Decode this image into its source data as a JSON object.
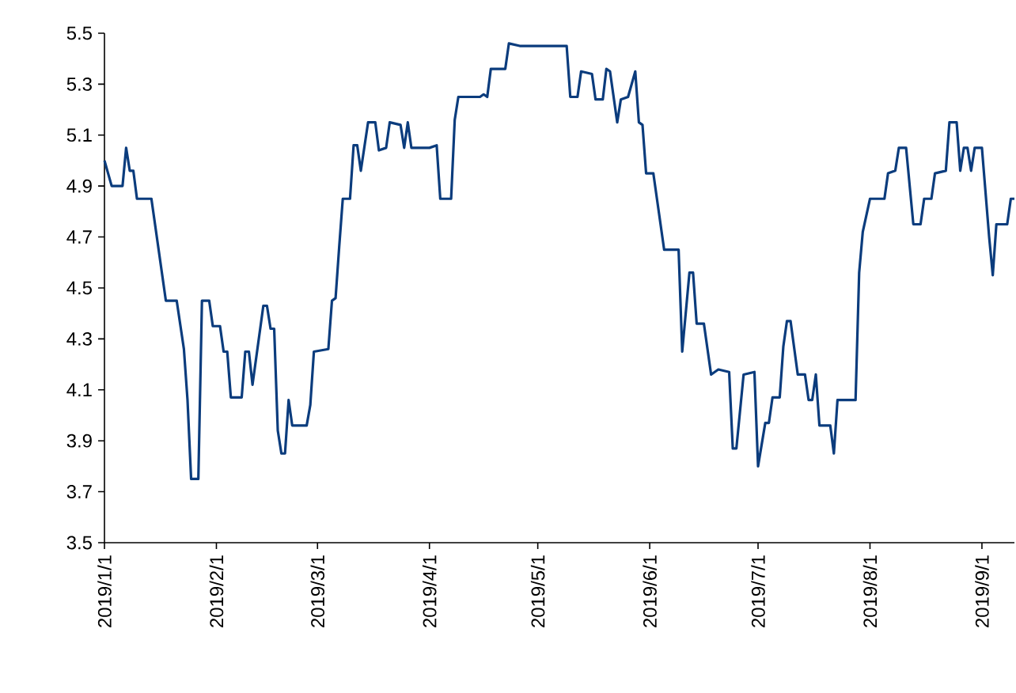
{
  "chart_data": {
    "type": "line",
    "x": [
      "2019-01-01",
      "2019-01-03",
      "2019-01-06",
      "2019-01-07",
      "2019-01-08",
      "2019-01-09",
      "2019-01-10",
      "2019-01-14",
      "2019-01-18",
      "2019-01-21",
      "2019-01-23",
      "2019-01-24",
      "2019-01-25",
      "2019-01-27",
      "2019-01-28",
      "2019-01-30",
      "2019-01-31",
      "2019-02-02",
      "2019-02-03",
      "2019-02-04",
      "2019-02-05",
      "2019-02-08",
      "2019-02-09",
      "2019-02-10",
      "2019-02-11",
      "2019-02-14",
      "2019-02-15",
      "2019-02-16",
      "2019-02-17",
      "2019-02-18",
      "2019-02-19",
      "2019-02-20",
      "2019-02-21",
      "2019-02-22",
      "2019-02-26",
      "2019-02-27",
      "2019-02-28",
      "2019-03-04",
      "2019-03-05",
      "2019-03-06",
      "2019-03-07",
      "2019-03-08",
      "2019-03-10",
      "2019-03-11",
      "2019-03-12",
      "2019-03-13",
      "2019-03-15",
      "2019-03-17",
      "2019-03-18",
      "2019-03-20",
      "2019-03-21",
      "2019-03-24",
      "2019-03-25",
      "2019-03-26",
      "2019-03-27",
      "2019-04-01",
      "2019-04-03",
      "2019-04-04",
      "2019-04-07",
      "2019-04-08",
      "2019-04-09",
      "2019-04-15",
      "2019-04-16",
      "2019-04-17",
      "2019-04-18",
      "2019-04-22",
      "2019-04-23",
      "2019-04-26",
      "2019-05-09",
      "2019-05-10",
      "2019-05-12",
      "2019-05-13",
      "2019-05-16",
      "2019-05-17",
      "2019-05-19",
      "2019-05-20",
      "2019-05-21",
      "2019-05-23",
      "2019-05-24",
      "2019-05-26",
      "2019-05-28",
      "2019-05-29",
      "2019-05-30",
      "2019-05-31",
      "2019-06-02",
      "2019-06-05",
      "2019-06-09",
      "2019-06-10",
      "2019-06-12",
      "2019-06-13",
      "2019-06-14",
      "2019-06-16",
      "2019-06-18",
      "2019-06-20",
      "2019-06-23",
      "2019-06-24",
      "2019-06-25",
      "2019-06-27",
      "2019-06-30",
      "2019-07-01",
      "2019-07-03",
      "2019-07-04",
      "2019-07-05",
      "2019-07-07",
      "2019-07-08",
      "2019-07-09",
      "2019-07-10",
      "2019-07-12",
      "2019-07-14",
      "2019-07-15",
      "2019-07-16",
      "2019-07-17",
      "2019-07-18",
      "2019-07-21",
      "2019-07-22",
      "2019-07-23",
      "2019-07-25",
      "2019-07-28",
      "2019-07-29",
      "2019-07-30",
      "2019-08-01",
      "2019-08-05",
      "2019-08-06",
      "2019-08-08",
      "2019-08-09",
      "2019-08-11",
      "2019-08-13",
      "2019-08-15",
      "2019-08-16",
      "2019-08-18",
      "2019-08-19",
      "2019-08-22",
      "2019-08-23",
      "2019-08-25",
      "2019-08-26",
      "2019-08-27",
      "2019-08-28",
      "2019-08-29",
      "2019-08-30",
      "2019-09-01",
      "2019-09-03",
      "2019-09-04",
      "2019-09-05",
      "2019-09-08",
      "2019-09-09",
      "2019-09-10"
    ],
    "series": [
      {
        "color": "#0b3c7d",
        "values": [
          5.0,
          4.9,
          4.9,
          5.05,
          4.96,
          4.96,
          4.85,
          4.85,
          4.45,
          4.45,
          4.26,
          4.06,
          3.75,
          3.75,
          4.45,
          4.45,
          4.35,
          4.35,
          4.25,
          4.25,
          4.07,
          4.07,
          4.25,
          4.25,
          4.12,
          4.43,
          4.43,
          4.34,
          4.34,
          3.94,
          3.85,
          3.85,
          4.06,
          3.96,
          3.96,
          4.04,
          4.25,
          4.26,
          4.45,
          4.46,
          4.66,
          4.85,
          4.85,
          5.06,
          5.06,
          4.96,
          5.15,
          5.15,
          5.04,
          5.05,
          5.15,
          5.14,
          5.05,
          5.15,
          5.05,
          5.05,
          5.06,
          4.85,
          4.85,
          5.16,
          5.25,
          5.25,
          5.26,
          5.25,
          5.36,
          5.36,
          5.46,
          5.45,
          5.45,
          5.25,
          5.25,
          5.35,
          5.34,
          5.24,
          5.24,
          5.36,
          5.35,
          5.15,
          5.24,
          5.25,
          5.35,
          5.15,
          5.14,
          4.95,
          4.95,
          4.65,
          4.65,
          4.25,
          4.56,
          4.56,
          4.36,
          4.36,
          4.16,
          4.18,
          4.17,
          3.87,
          3.87,
          4.16,
          4.17,
          3.8,
          3.97,
          3.97,
          4.07,
          4.07,
          4.27,
          4.37,
          4.37,
          4.16,
          4.16,
          4.06,
          4.06,
          4.16,
          3.96,
          3.96,
          3.85,
          4.06,
          4.06,
          4.06,
          4.56,
          4.72,
          4.85,
          4.85,
          4.95,
          4.96,
          5.05,
          5.05,
          4.75,
          4.75,
          4.85,
          4.85,
          4.95,
          4.96,
          5.15,
          5.15,
          4.96,
          5.05,
          5.05,
          4.96,
          5.05,
          5.05,
          4.7,
          4.55,
          4.75,
          4.75,
          4.85,
          4.85
        ]
      }
    ],
    "xlim": [
      "2019-01-01",
      "2019-09-10"
    ],
    "xticks": [
      {
        "value": "2019-01-01",
        "label": "2019/1/1"
      },
      {
        "value": "2019-02-01",
        "label": "2019/2/1"
      },
      {
        "value": "2019-03-01",
        "label": "2019/3/1"
      },
      {
        "value": "2019-04-01",
        "label": "2019/4/1"
      },
      {
        "value": "2019-05-01",
        "label": "2019/5/1"
      },
      {
        "value": "2019-06-01",
        "label": "2019/6/1"
      },
      {
        "value": "2019-07-01",
        "label": "2019/7/1"
      },
      {
        "value": "2019-08-01",
        "label": "2019/8/1"
      },
      {
        "value": "2019-09-01",
        "label": "2019/9/1"
      }
    ],
    "ylim": [
      3.5,
      5.5
    ],
    "yticks": [
      3.5,
      3.7,
      3.9,
      4.1,
      4.3,
      4.5,
      4.7,
      4.9,
      5.1,
      5.3,
      5.5
    ],
    "grid": false,
    "marker": "none",
    "line_style": "solid"
  }
}
